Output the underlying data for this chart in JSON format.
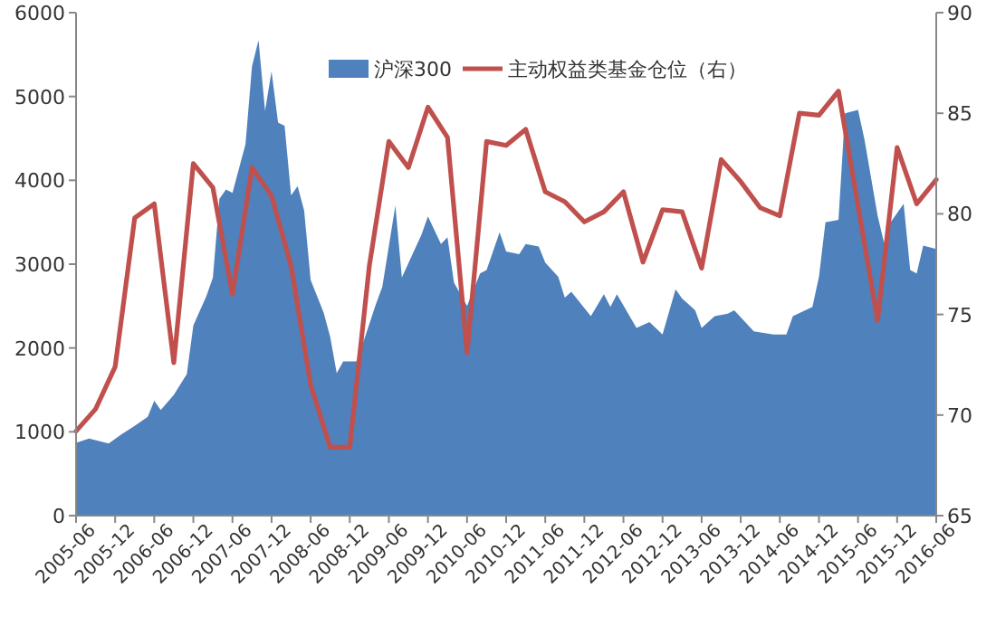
{
  "chart_data": {
    "type": "area",
    "xlim": [
      "2005-06",
      "2016-06"
    ],
    "xticks": [
      "2005-06",
      "2005-12",
      "2006-06",
      "2006-12",
      "2007-06",
      "2007-12",
      "2008-06",
      "2008-12",
      "2009-06",
      "2009-12",
      "2010-06",
      "2010-12",
      "2011-06",
      "2011-12",
      "2012-06",
      "2012-12",
      "2013-06",
      "2013-12",
      "2014-06",
      "2014-12",
      "2015-06",
      "2015-12",
      "2016-06"
    ],
    "ylim": [
      0,
      6000
    ],
    "yticks": [
      0,
      1000,
      2000,
      3000,
      4000,
      5000,
      6000
    ],
    "y2lim": [
      65,
      90
    ],
    "y2ticks": [
      65,
      70,
      75,
      80,
      85,
      90
    ],
    "legend": "top",
    "series": [
      {
        "name": "沪深300",
        "color": "#4f81bd",
        "x": [
          "2005-06",
          "2005-08",
          "2005-11",
          "2006-01",
          "2006-03",
          "2006-05",
          "2006-06",
          "2006-07",
          "2006-09",
          "2006-11",
          "2006-12",
          "2007-02",
          "2007-03",
          "2007-04",
          "2007-05",
          "2007-06",
          "2007-08",
          "2007-09",
          "2007-10",
          "2007-11",
          "2007-12",
          "2008-01",
          "2008-02",
          "2008-03",
          "2008-04",
          "2008-05",
          "2008-06",
          "2008-08",
          "2008-09",
          "2008-10",
          "2008-11",
          "2009-01",
          "2009-02",
          "2009-04",
          "2009-05",
          "2009-07",
          "2009-08",
          "2009-11",
          "2009-12",
          "2010-02",
          "2010-03",
          "2010-04",
          "2010-06",
          "2010-08",
          "2010-09",
          "2010-11",
          "2010-12",
          "2011-02",
          "2011-03",
          "2011-05",
          "2011-06",
          "2011-08",
          "2011-09",
          "2011-10",
          "2012-01",
          "2012-03",
          "2012-04",
          "2012-05",
          "2012-08",
          "2012-10",
          "2012-12",
          "2013-02",
          "2013-03",
          "2013-05",
          "2013-06",
          "2013-08",
          "2013-10",
          "2013-11",
          "2014-02",
          "2014-05",
          "2014-07",
          "2014-08",
          "2014-11",
          "2014-12",
          "2015-01",
          "2015-03",
          "2015-04",
          "2015-06",
          "2015-07",
          "2015-09",
          "2015-10",
          "2015-11",
          "2016-01",
          "2016-02",
          "2016-03",
          "2016-04",
          "2016-06"
        ],
        "values": [
          870,
          920,
          860,
          970,
          1070,
          1180,
          1370,
          1260,
          1440,
          1690,
          2270,
          2620,
          2840,
          3780,
          3890,
          3850,
          4430,
          5360,
          5670,
          4830,
          5300,
          4690,
          4650,
          3820,
          3930,
          3640,
          2810,
          2420,
          2130,
          1700,
          1840,
          1840,
          2050,
          2520,
          2730,
          3700,
          2840,
          3350,
          3570,
          3240,
          3320,
          2780,
          2500,
          2890,
          2930,
          3380,
          3150,
          3120,
          3240,
          3210,
          3020,
          2850,
          2600,
          2670,
          2380,
          2640,
          2490,
          2640,
          2240,
          2310,
          2160,
          2700,
          2590,
          2450,
          2240,
          2380,
          2410,
          2450,
          2200,
          2160,
          2160,
          2380,
          2490,
          2850,
          3500,
          3530,
          4800,
          4840,
          4480,
          3580,
          3250,
          3500,
          3720,
          2930,
          2890,
          3220,
          3180
        ]
      },
      {
        "name": "主动权益类基金仓位（右）",
        "type": "line",
        "axis": "y2",
        "color": "#c0504d",
        "x": [
          "2005-06",
          "2005-09",
          "2005-12",
          "2006-03",
          "2006-06",
          "2006-09",
          "2006-12",
          "2007-03",
          "2007-06",
          "2007-09",
          "2007-12",
          "2008-03",
          "2008-06",
          "2008-09",
          "2008-12",
          "2009-03",
          "2009-06",
          "2009-09",
          "2009-12",
          "2010-03",
          "2010-06",
          "2010-09",
          "2010-12",
          "2011-03",
          "2011-06",
          "2011-09",
          "2011-12",
          "2012-03",
          "2012-06",
          "2012-09",
          "2012-12",
          "2013-03",
          "2013-06",
          "2013-09",
          "2013-12",
          "2014-03",
          "2014-06",
          "2014-09",
          "2014-12",
          "2015-03",
          "2015-09",
          "2015-12",
          "2016-03",
          "2016-06"
        ],
        "values": [
          69.2,
          70.3,
          72.4,
          79.8,
          80.5,
          72.6,
          82.5,
          81.3,
          76.0,
          82.3,
          80.9,
          77.4,
          71.5,
          68.4,
          68.4,
          77.4,
          83.6,
          82.3,
          85.3,
          83.8,
          73.1,
          83.6,
          83.4,
          84.2,
          81.1,
          80.6,
          79.6,
          80.1,
          81.1,
          77.6,
          80.2,
          80.1,
          77.3,
          82.7,
          81.6,
          80.3,
          79.9,
          85.0,
          84.9,
          86.1,
          74.7,
          83.3,
          80.5,
          81.7
        ]
      }
    ]
  }
}
